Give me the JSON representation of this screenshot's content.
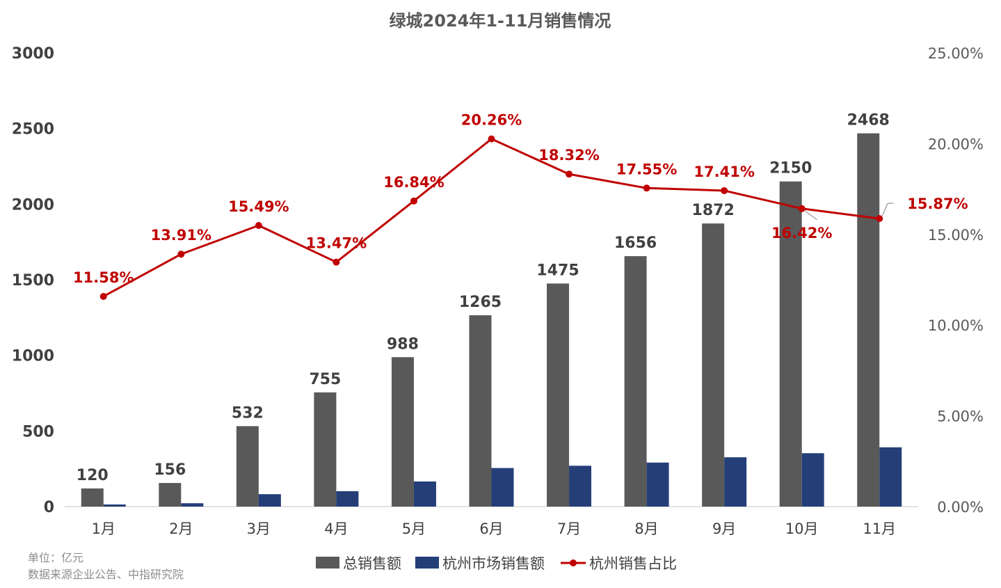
{
  "chart_data": {
    "type": "bar",
    "title": "绿城2024年1-11月销售情况",
    "categories": [
      "1月",
      "2月",
      "3月",
      "4月",
      "5月",
      "6月",
      "7月",
      "8月",
      "9月",
      "10月",
      "11月"
    ],
    "series": [
      {
        "name": "总销售额",
        "type": "bar",
        "axis": "left",
        "color": "#595959",
        "values": [
          120,
          156,
          532,
          755,
          988,
          1265,
          1475,
          1656,
          1872,
          2150,
          2468
        ]
      },
      {
        "name": "杭州市场销售额",
        "type": "bar",
        "axis": "left",
        "color": "#243F78",
        "values": [
          14,
          22,
          82,
          102,
          166,
          255,
          270,
          291,
          326,
          353,
          392
        ]
      },
      {
        "name": "杭州销售占比",
        "type": "line",
        "axis": "right",
        "color": "#C00000",
        "values": [
          11.58,
          13.91,
          15.49,
          13.47,
          16.84,
          20.26,
          18.32,
          17.55,
          17.41,
          16.42,
          15.87
        ],
        "labels": [
          "11.58%",
          "13.91%",
          "15.49%",
          "13.47%",
          "16.84%",
          "20.26%",
          "18.32%",
          "17.55%",
          "17.41%",
          "16.42%",
          "15.87%"
        ]
      }
    ],
    "bar_labels": [
      "120",
      "156",
      "532",
      "755",
      "988",
      "1265",
      "1475",
      "1656",
      "1872",
      "2150",
      "2468"
    ],
    "y_axis": {
      "min": 0,
      "max": 3000,
      "step": 500,
      "ticks": [
        "0",
        "500",
        "1000",
        "1500",
        "2000",
        "2500",
        "3000"
      ]
    },
    "y2_axis": {
      "min": 0,
      "max": 25,
      "step": 5,
      "ticks": [
        "0.00%",
        "5.00%",
        "10.00%",
        "15.00%",
        "20.00%",
        "25.00%"
      ]
    },
    "grid": false,
    "legend_position": "bottom"
  },
  "notes": {
    "unit": "单位：亿元",
    "source": "数据来源企业公告、中指研究院"
  }
}
